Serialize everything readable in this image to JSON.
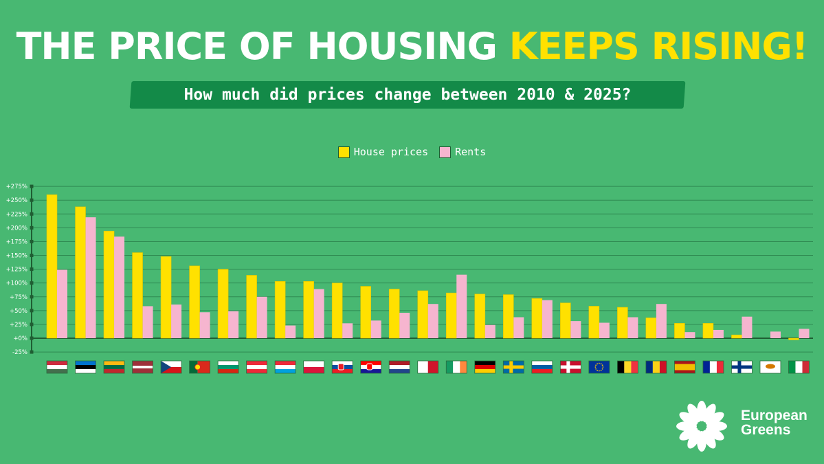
{
  "header": {
    "title_part1": "THE PRICE OF HOUSING",
    "title_part2": "KEEPS RISING!",
    "subtitle": "How much did prices change between 2010 & 2025?"
  },
  "colors": {
    "background": "#48b872",
    "accent_yellow": "#ffe100",
    "rents_pink": "#f6b5cf",
    "banner_green": "#138a48"
  },
  "legend": {
    "house_prices": "House prices",
    "rents": "Rents"
  },
  "chart_data": {
    "type": "bar",
    "title": "How much did prices change between 2010 & 2025?",
    "xlabel": "",
    "ylabel": "",
    "ylim": [
      -25,
      275
    ],
    "yticks": [
      -25,
      0,
      25,
      50,
      75,
      100,
      125,
      150,
      175,
      200,
      225,
      250,
      275
    ],
    "ytick_labels": [
      "-25%",
      "+0%",
      "+25%",
      "+50%",
      "+75%",
      "+100%",
      "+125%",
      "+150%",
      "+175%",
      "+200%",
      "+225%",
      "+250%",
      "+275%"
    ],
    "grid": true,
    "legend_position": "top-center",
    "categories": [
      "Hungary",
      "Estonia",
      "Lithuania",
      "Latvia",
      "Czechia",
      "Portugal",
      "Bulgaria",
      "Austria",
      "Luxembourg",
      "Poland",
      "Slovakia",
      "Croatia",
      "Netherlands",
      "Malta",
      "Ireland",
      "Germany",
      "Sweden",
      "Slovenia",
      "Denmark",
      "European Union",
      "Belgium",
      "Romania",
      "Spain",
      "France",
      "Finland",
      "Cyprus",
      "Italy"
    ],
    "series": [
      {
        "name": "House prices",
        "values": [
          260,
          238,
          194,
          155,
          148,
          131,
          125,
          114,
          103,
          103,
          100,
          94,
          89,
          86,
          82,
          80,
          79,
          72,
          64,
          58,
          56,
          37,
          27,
          27,
          6,
          0,
          -3
        ]
      },
      {
        "name": "Rents",
        "values": [
          124,
          219,
          184,
          58,
          61,
          47,
          49,
          75,
          23,
          89,
          27,
          32,
          46,
          62,
          115,
          24,
          38,
          69,
          31,
          28,
          38,
          62,
          11,
          15,
          39,
          12,
          17
        ]
      }
    ]
  },
  "flags": [
    {
      "country": "Hungary",
      "icon": "flag-hungary-icon",
      "h": [
        "#cd2a3e",
        "#ffffff",
        "#436f4d"
      ]
    },
    {
      "country": "Estonia",
      "icon": "flag-estonia-icon",
      "h": [
        "#0072ce",
        "#000000",
        "#ffffff"
      ]
    },
    {
      "country": "Lithuania",
      "icon": "flag-lithuania-icon",
      "h": [
        "#fdb913",
        "#006a44",
        "#c1272d"
      ]
    },
    {
      "country": "Latvia",
      "icon": "flag-latvia-icon",
      "h": [
        "#9e3039",
        "#ffffff",
        "#9e3039"
      ],
      "weights": [
        2,
        1,
        2
      ]
    },
    {
      "country": "Czechia",
      "icon": "flag-czechia-icon",
      "h": [
        "#ffffff",
        "#d7141a"
      ],
      "tri": "#11457e"
    },
    {
      "country": "Portugal",
      "icon": "flag-portugal-icon",
      "v": [
        "#046a38",
        "#da291c"
      ],
      "weights": [
        2,
        3
      ],
      "dot": "#ffe100"
    },
    {
      "country": "Bulgaria",
      "icon": "flag-bulgaria-icon",
      "h": [
        "#ffffff",
        "#00966e",
        "#d62612"
      ]
    },
    {
      "country": "Austria",
      "icon": "flag-austria-icon",
      "h": [
        "#ed2939",
        "#ffffff",
        "#ed2939"
      ]
    },
    {
      "country": "Luxembourg",
      "icon": "flag-luxembourg-icon",
      "h": [
        "#ed2939",
        "#ffffff",
        "#00a1de"
      ]
    },
    {
      "country": "Poland",
      "icon": "flag-poland-icon",
      "h": [
        "#ffffff",
        "#dc143c"
      ]
    },
    {
      "country": "Slovakia",
      "icon": "flag-slovakia-icon",
      "h": [
        "#ffffff",
        "#0b4ea2",
        "#ee1c25"
      ],
      "shield": "#ee1c25"
    },
    {
      "country": "Croatia",
      "icon": "flag-croatia-icon",
      "h": [
        "#ff0000",
        "#ffffff",
        "#171796"
      ],
      "shield": "#ff0000"
    },
    {
      "country": "Netherlands",
      "icon": "flag-netherlands-icon",
      "h": [
        "#ae1c28",
        "#ffffff",
        "#21468b"
      ]
    },
    {
      "country": "Malta",
      "icon": "flag-malta-icon",
      "v": [
        "#ffffff",
        "#cf142b"
      ]
    },
    {
      "country": "Ireland",
      "icon": "flag-ireland-icon",
      "v": [
        "#169b62",
        "#ffffff",
        "#ff883e"
      ]
    },
    {
      "country": "Germany",
      "icon": "flag-germany-icon",
      "h": [
        "#000000",
        "#dd0000",
        "#ffce00"
      ]
    },
    {
      "country": "Sweden",
      "icon": "flag-sweden-icon",
      "cross": [
        "#006aa7",
        "#fecc00"
      ]
    },
    {
      "country": "Slovenia",
      "icon": "flag-slovenia-icon",
      "h": [
        "#ffffff",
        "#005da4",
        "#ed1c24"
      ]
    },
    {
      "country": "Denmark",
      "icon": "flag-denmark-icon",
      "cross": [
        "#c8102e",
        "#ffffff"
      ]
    },
    {
      "country": "European Union",
      "icon": "flag-eu-icon",
      "eu": [
        "#003399",
        "#ffcc00"
      ]
    },
    {
      "country": "Belgium",
      "icon": "flag-belgium-icon",
      "v": [
        "#000000",
        "#fdda24",
        "#ef3340"
      ]
    },
    {
      "country": "Romania",
      "icon": "flag-romania-icon",
      "v": [
        "#002b7f",
        "#fcd116",
        "#ce1126"
      ]
    },
    {
      "country": "Spain",
      "icon": "flag-spain-icon",
      "h": [
        "#aa151b",
        "#f1bf00",
        "#aa151b"
      ],
      "weights": [
        1,
        2,
        1
      ]
    },
    {
      "country": "France",
      "icon": "flag-france-icon",
      "v": [
        "#002395",
        "#ffffff",
        "#ed2939"
      ]
    },
    {
      "country": "Finland",
      "icon": "flag-finland-icon",
      "cross": [
        "#ffffff",
        "#003580"
      ]
    },
    {
      "country": "Cyprus",
      "icon": "flag-cyprus-icon",
      "cyprus": [
        "#ffffff",
        "#d57800"
      ]
    },
    {
      "country": "Italy",
      "icon": "flag-italy-icon",
      "v": [
        "#009246",
        "#ffffff",
        "#ce2b37"
      ]
    }
  ],
  "logo": {
    "line1": "European",
    "line2": "Greens",
    "icon": "flower-icon"
  }
}
